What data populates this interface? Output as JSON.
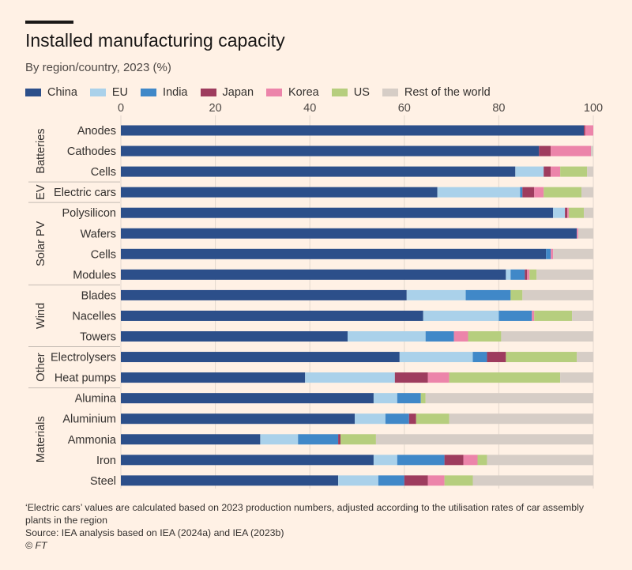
{
  "header": {
    "title": "Installed manufacturing capacity",
    "subtitle": "By region/country, 2023 (%)"
  },
  "legend": [
    {
      "label": "China",
      "color": "#2c4f8a"
    },
    {
      "label": "EU",
      "color": "#aad1ea"
    },
    {
      "label": "India",
      "color": "#4088c8"
    },
    {
      "label": "Japan",
      "color": "#9e3c5e"
    },
    {
      "label": "Korea",
      "color": "#ec84aa"
    },
    {
      "label": "US",
      "color": "#b6ce7e"
    },
    {
      "label": "Rest of the world",
      "color": "#d6cdc6"
    }
  ],
  "footer": {
    "note_line1": "‘Electric cars’ values are calculated based on 2023 production numbers, adjusted according to the utilisation rates of car assembly",
    "note_line2": "plants in the region",
    "source": "Source: IEA analysis based on IEA (2024a) and IEA (2023b)",
    "credit": "© FT"
  },
  "chart_data": {
    "type": "bar",
    "orientation": "horizontal",
    "stacked": true,
    "title": "Installed manufacturing capacity",
    "subtitle": "By region/country, 2023 (%)",
    "xlim": [
      0,
      100
    ],
    "xticks": [
      0,
      20,
      40,
      60,
      80,
      100
    ],
    "x_axis_position": "top",
    "grid": true,
    "legend_position": "top",
    "series_names": [
      "China",
      "EU",
      "India",
      "Japan",
      "Korea",
      "US",
      "Rest of the world"
    ],
    "groups": [
      {
        "name": "Batteries",
        "rows": [
          {
            "label": "Anodes",
            "values": [
              98,
              0,
              0,
              0.3,
              1.7,
              0,
              0
            ]
          },
          {
            "label": "Cathodes",
            "values": [
              88.5,
              0,
              0,
              2.5,
              8.5,
              0,
              0.5
            ]
          },
          {
            "label": "Cells",
            "values": [
              83.5,
              6,
              0,
              1.5,
              2,
              5.7,
              1.3
            ]
          }
        ]
      },
      {
        "name": "EV",
        "rows": [
          {
            "label": "Electric cars",
            "values": [
              67,
              17.5,
              0.5,
              2.5,
              2,
              8,
              2.5
            ]
          }
        ]
      },
      {
        "name": "Solar PV",
        "rows": [
          {
            "label": "Polysilicon",
            "values": [
              91.5,
              2.5,
              0,
              0.5,
              0.3,
              3.2,
              2
            ]
          },
          {
            "label": "Wafers",
            "values": [
              96.5,
              0,
              0,
              0,
              0.3,
              0,
              3.2
            ]
          },
          {
            "label": "Cells",
            "values": [
              90,
              0,
              1,
              0,
              0.5,
              0,
              8.5
            ]
          },
          {
            "label": "Modules",
            "values": [
              81.5,
              1,
              3,
              0.5,
              0.5,
              1.5,
              12
            ]
          }
        ]
      },
      {
        "name": "Wind",
        "rows": [
          {
            "label": "Blades",
            "values": [
              60.5,
              12.5,
              9.5,
              0,
              0,
              2.5,
              15
            ]
          },
          {
            "label": "Nacelles",
            "values": [
              64,
              16,
              7,
              0,
              0.5,
              8,
              4.5
            ]
          },
          {
            "label": "Towers",
            "values": [
              48,
              16.5,
              6,
              0,
              3,
              7,
              19.5
            ]
          }
        ]
      },
      {
        "name": "Other",
        "rows": [
          {
            "label": "Electrolysers",
            "values": [
              59,
              15.5,
              3,
              4,
              0,
              15,
              3.5
            ]
          },
          {
            "label": "Heat pumps",
            "values": [
              39,
              19,
              0,
              7,
              4.5,
              23.5,
              7
            ]
          }
        ]
      },
      {
        "name": "Materials",
        "rows": [
          {
            "label": "Alumina",
            "values": [
              53.5,
              5,
              5,
              0,
              0,
              1,
              35.5
            ]
          },
          {
            "label": "Aluminium",
            "values": [
              49.5,
              6.5,
              5,
              1.5,
              0,
              7,
              30.5
            ]
          },
          {
            "label": "Ammonia",
            "values": [
              29.5,
              8,
              8.5,
              0.5,
              0,
              7.5,
              46
            ]
          },
          {
            "label": "Iron",
            "values": [
              53.5,
              5,
              10,
              4,
              3,
              2,
              22.5
            ]
          },
          {
            "label": "Steel",
            "values": [
              46,
              8.5,
              5.5,
              5,
              3.5,
              6,
              25.5
            ]
          }
        ]
      }
    ]
  }
}
